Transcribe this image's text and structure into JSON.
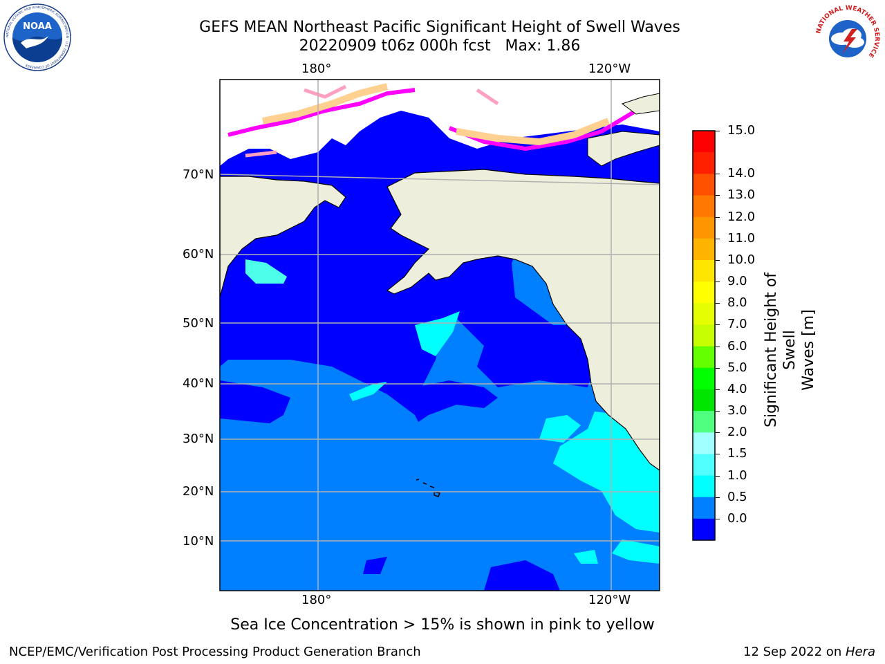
{
  "header": {
    "title_line1": "GEFS MEAN Northeast Pacific Significant Height of Swell Waves",
    "title_line2": "20220909 t06z 000h fcst   Max: 1.86"
  },
  "logos": {
    "noaa_text": "NOAA",
    "noaa_ring": "NATIONAL OCEANIC AND ATMOSPHERIC ADMINISTRATION · U.S. DEPARTMENT OF COMMERCE",
    "nws_ring": "NATIONAL WEATHER SERVICE"
  },
  "map": {
    "lon_labels_top": [
      "180°",
      "120°W"
    ],
    "lon_labels_bottom": [
      "180°",
      "120°W"
    ],
    "lat_labels": [
      "70°N",
      "60°N",
      "50°N",
      "40°N",
      "30°N",
      "20°N",
      "10°N"
    ],
    "colors": {
      "land": "#eeeedc",
      "ocean_lt05": "#0000ff",
      "ocean_05_10": "#0080ff",
      "ocean_10_15": "#00ffff",
      "ocean_15_20": "#4dffea",
      "ice": "#ff00ff",
      "ice_mid": "#ffa0c0",
      "ice_high": "#ffd090",
      "grid": "#b0b0b0",
      "coast": "#000000"
    }
  },
  "colorbar": {
    "ticks": [
      "15.0",
      "14.0",
      "13.0",
      "12.0",
      "11.0",
      "10.0",
      "9.0",
      "8.0",
      "7.0",
      "6.0",
      "5.0",
      "4.0",
      "3.0",
      "2.0",
      "1.5",
      "1.0",
      "0.5",
      "0.0"
    ],
    "colors_top_to_bottom": [
      "#ff0000",
      "#ff2000",
      "#ff5000",
      "#ff7800",
      "#ff9600",
      "#ffb400",
      "#ffe600",
      "#ffff00",
      "#e6ff00",
      "#c8ff00",
      "#64ff00",
      "#00ff00",
      "#00e600",
      "#50ff80",
      "#a0ffff",
      "#50ffff",
      "#00ffff",
      "#0080ff",
      "#0000ff"
    ],
    "label_line1": "Significant Height of Swell",
    "label_line2": "Waves [m]"
  },
  "note": "Sea Ice Concentration > 15% is shown in pink to yellow",
  "footer": {
    "left": "NCEP/EMC/Verification Post Processing Product Generation Branch",
    "date": "12 Sep 2022 on ",
    "machine": "Hera"
  }
}
